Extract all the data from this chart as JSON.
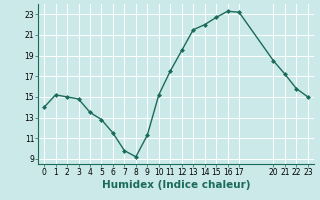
{
  "x": [
    0,
    1,
    2,
    3,
    4,
    5,
    6,
    7,
    8,
    9,
    10,
    11,
    12,
    13,
    14,
    15,
    16,
    17,
    20,
    21,
    22,
    23
  ],
  "y": [
    14.0,
    15.2,
    15.0,
    14.8,
    13.5,
    12.8,
    11.5,
    9.8,
    9.2,
    11.3,
    15.2,
    17.5,
    19.5,
    21.5,
    22.0,
    22.7,
    23.3,
    23.2,
    18.5,
    17.2,
    15.8,
    15.0
  ],
  "line_color": "#1a6b5a",
  "marker": "D",
  "marker_size": 2.0,
  "bg_color": "#cce9e9",
  "grid_color": "#ffffff",
  "xlabel": "Humidex (Indice chaleur)",
  "xlim": [
    -0.5,
    23.5
  ],
  "ylim": [
    8.5,
    24.0
  ],
  "yticks": [
    9,
    11,
    13,
    15,
    17,
    19,
    21,
    23
  ],
  "xticks": [
    0,
    1,
    2,
    3,
    4,
    5,
    6,
    7,
    8,
    9,
    10,
    11,
    12,
    13,
    14,
    15,
    16,
    17,
    20,
    21,
    22,
    23
  ],
  "tick_fontsize": 5.5,
  "xlabel_fontsize": 7.5,
  "line_width": 1.0,
  "spine_color": "#1a6b5a"
}
